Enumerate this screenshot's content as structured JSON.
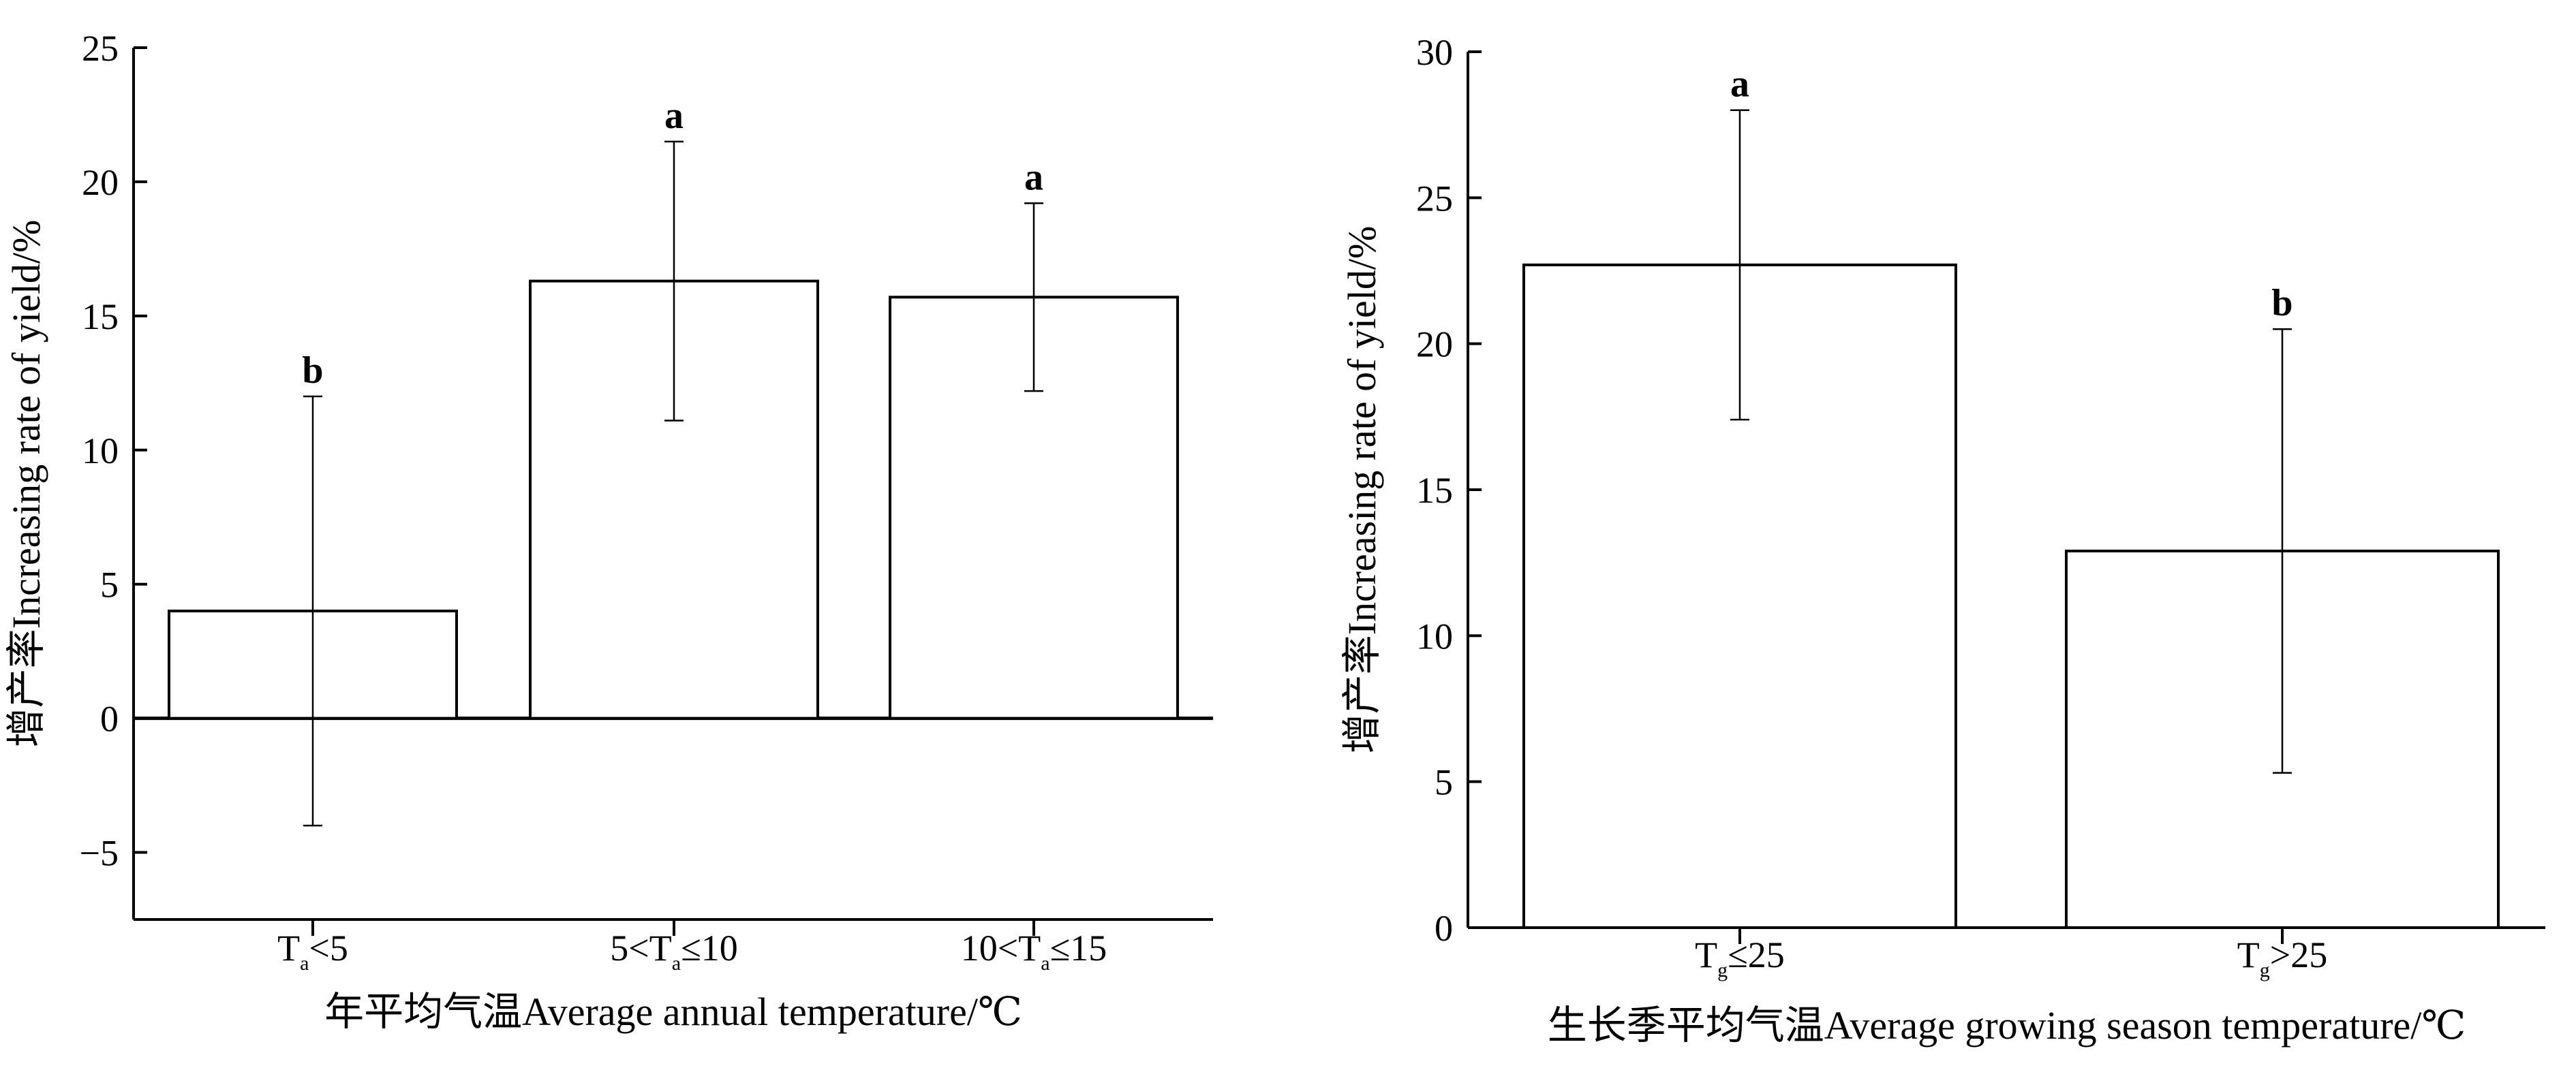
{
  "chart_data": [
    {
      "type": "bar",
      "categories": [
        {
          "pre": "T",
          "sub": "a",
          "post": "<5"
        },
        {
          "pre": "5<T",
          "sub": "a",
          "post": "≤10"
        },
        {
          "pre": "10<T",
          "sub": "a",
          "post": "≤15"
        }
      ],
      "values": [
        4.0,
        16.3,
        15.7
      ],
      "error": [
        8.0,
        5.2,
        3.5
      ],
      "significance": [
        "b",
        "a",
        "a"
      ],
      "xlabel": "年平均气温Average annual temperature/℃",
      "ylabel": "增产率Increasing rate of yield/%",
      "ylim": [
        -7.5,
        25
      ],
      "yticks": [
        -5,
        0,
        5,
        10,
        15,
        20,
        25
      ],
      "ytick_labels": [
        "−5",
        "0",
        "5",
        "10",
        "15",
        "20",
        "25"
      ],
      "zero_line": true
    },
    {
      "type": "bar",
      "categories": [
        {
          "pre": "T",
          "sub": "g",
          "post": "≤25"
        },
        {
          "pre": "T",
          "sub": "g",
          "post": ">25"
        }
      ],
      "values": [
        22.7,
        12.9
      ],
      "error": [
        5.3,
        7.6
      ],
      "significance": [
        "a",
        "b"
      ],
      "xlabel": "生长季平均气温Average growing season temperature/℃",
      "ylabel": "增产率Increasing rate of yield/%",
      "ylim": [
        0,
        30
      ],
      "yticks": [
        0,
        5,
        10,
        15,
        20,
        25,
        30
      ],
      "ytick_labels": [
        "0",
        "5",
        "10",
        "15",
        "20",
        "25",
        "30"
      ],
      "zero_line": false
    }
  ]
}
